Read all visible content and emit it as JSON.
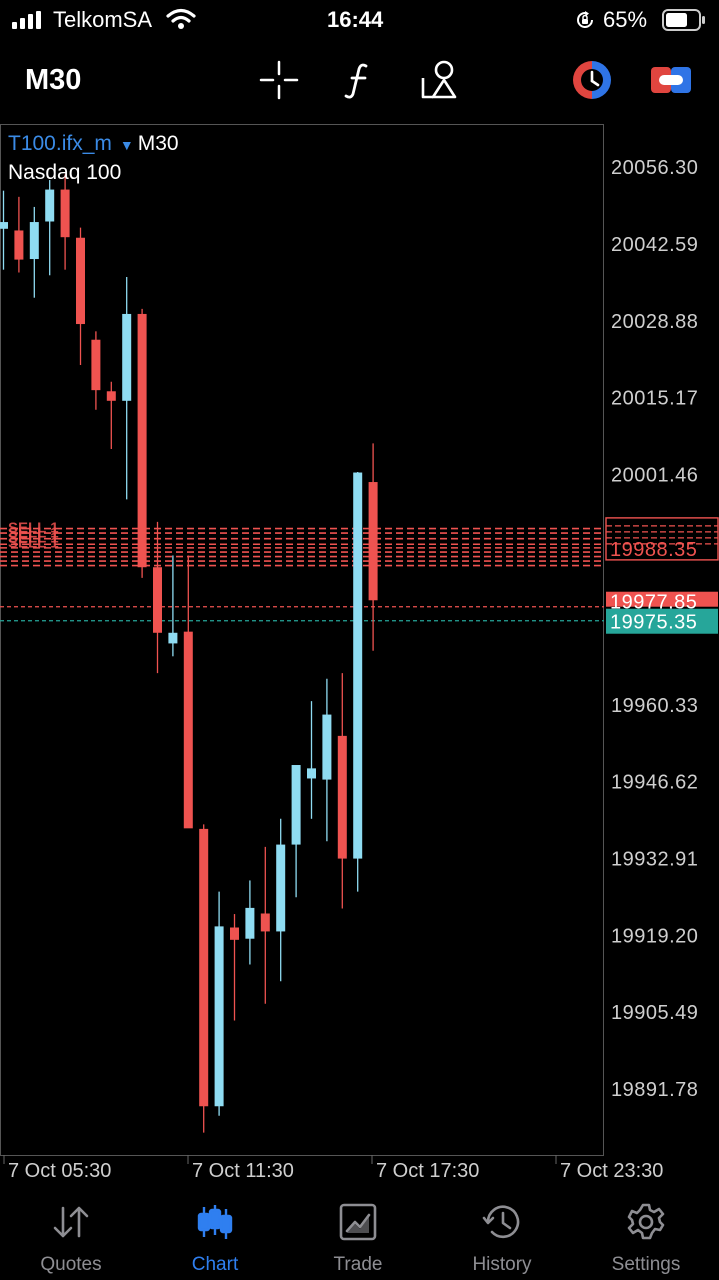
{
  "status_bar": {
    "carrier": "TelkomSA",
    "time": "16:44",
    "battery": "65%",
    "icons": [
      "signal-icon",
      "wifi-icon",
      "orientation-lock-icon",
      "battery-icon"
    ]
  },
  "toolbar": {
    "timeframe": "M30",
    "tools": [
      "crosshair-icon",
      "indicator-icon",
      "objects-icon",
      "one-click-trading-icon",
      "trade-panel-icon"
    ]
  },
  "chart": {
    "symbol": "T100.ifx_m",
    "timeframe": "M30",
    "description": "Nasdaq 100",
    "colors": {
      "bull": "#8fdcf2",
      "bear": "#ef5350",
      "bid_line": "#ef5350",
      "ask_line": "#26a69a",
      "background": "#000000",
      "axis_text": "#cfcfcf"
    },
    "y_range": [
      19880,
      20064
    ],
    "price_labels": [
      "20056.30",
      "20042.59",
      "20028.88",
      "20015.17",
      "20001.46",
      "19960.33",
      "19946.62",
      "19932.91",
      "19919.20",
      "19905.49",
      "19891.78"
    ],
    "order_level_price": "19988.35",
    "order_lines": [
      19991.8,
      19991.0,
      19990.0,
      19989.0,
      19988.35,
      19987.6,
      19986.8,
      19986.0,
      19985.2
    ],
    "order_label_text": "SELL 1",
    "bid": {
      "price": "19977.85",
      "value": 19977.85
    },
    "ask": {
      "price": "19975.35",
      "value": 19975.35
    },
    "time_labels": [
      "7 Oct 05:30",
      "7 Oct 11:30",
      "7 Oct 17:30",
      "7 Oct 23:30"
    ]
  },
  "chart_data": {
    "type": "candlestick",
    "series": [
      {
        "o": 20045.3,
        "h": 20052.1,
        "l": 20038.0,
        "c": 20046.5
      },
      {
        "o": 20045.0,
        "h": 20051.0,
        "l": 20037.5,
        "c": 20039.8
      },
      {
        "o": 20039.9,
        "h": 20049.2,
        "l": 20033.0,
        "c": 20046.5
      },
      {
        "o": 20046.6,
        "h": 20054.0,
        "l": 20037.0,
        "c": 20052.3
      },
      {
        "o": 20052.3,
        "h": 20055.0,
        "l": 20038.0,
        "c": 20043.8
      },
      {
        "o": 20043.7,
        "h": 20045.5,
        "l": 20021.0,
        "c": 20028.3
      },
      {
        "o": 20025.5,
        "h": 20027.0,
        "l": 20013.0,
        "c": 20016.5
      },
      {
        "o": 20016.3,
        "h": 20018.0,
        "l": 20006.0,
        "c": 20014.6
      },
      {
        "o": 20014.6,
        "h": 20036.7,
        "l": 19997.0,
        "c": 20030.1
      },
      {
        "o": 20030.1,
        "h": 20031.0,
        "l": 19983.0,
        "c": 19984.9
      },
      {
        "o": 19984.9,
        "h": 19993.0,
        "l": 19966.0,
        "c": 19973.2
      },
      {
        "o": 19971.3,
        "h": 19987.0,
        "l": 19969.0,
        "c": 19973.2
      },
      {
        "o": 19973.4,
        "h": 19987.0,
        "l": 19964.0,
        "c": 19938.3
      },
      {
        "o": 19938.2,
        "h": 19939.0,
        "l": 19884.0,
        "c": 19888.7
      },
      {
        "o": 19888.7,
        "h": 19927.0,
        "l": 19887.0,
        "c": 19920.8
      },
      {
        "o": 19920.6,
        "h": 19923.0,
        "l": 19904.0,
        "c": 19918.4
      },
      {
        "o": 19918.6,
        "h": 19929.0,
        "l": 19914.0,
        "c": 19924.1
      },
      {
        "o": 19923.1,
        "h": 19935.0,
        "l": 19907.0,
        "c": 19919.9
      },
      {
        "o": 19919.9,
        "h": 19940.0,
        "l": 19911.0,
        "c": 19935.4
      },
      {
        "o": 19935.4,
        "h": 19946.0,
        "l": 19926.0,
        "c": 19949.6
      },
      {
        "o": 19947.2,
        "h": 19961.0,
        "l": 19940.0,
        "c": 19949.0
      },
      {
        "o": 19947.0,
        "h": 19965.0,
        "l": 19936.0,
        "c": 19958.6
      },
      {
        "o": 19954.8,
        "h": 19966.0,
        "l": 19924.0,
        "c": 19932.9
      },
      {
        "o": 19932.9,
        "h": 20001.9,
        "l": 19927.0,
        "c": 20001.8
      },
      {
        "o": 20000.1,
        "h": 20007.0,
        "l": 19970.0,
        "c": 19979.0
      }
    ]
  },
  "tabs": [
    {
      "label": "Quotes",
      "icon": "quotes-icon",
      "active": false
    },
    {
      "label": "Chart",
      "icon": "chart-icon",
      "active": true
    },
    {
      "label": "Trade",
      "icon": "trade-icon",
      "active": false
    },
    {
      "label": "History",
      "icon": "history-icon",
      "active": false
    },
    {
      "label": "Settings",
      "icon": "settings-icon",
      "active": false
    }
  ]
}
